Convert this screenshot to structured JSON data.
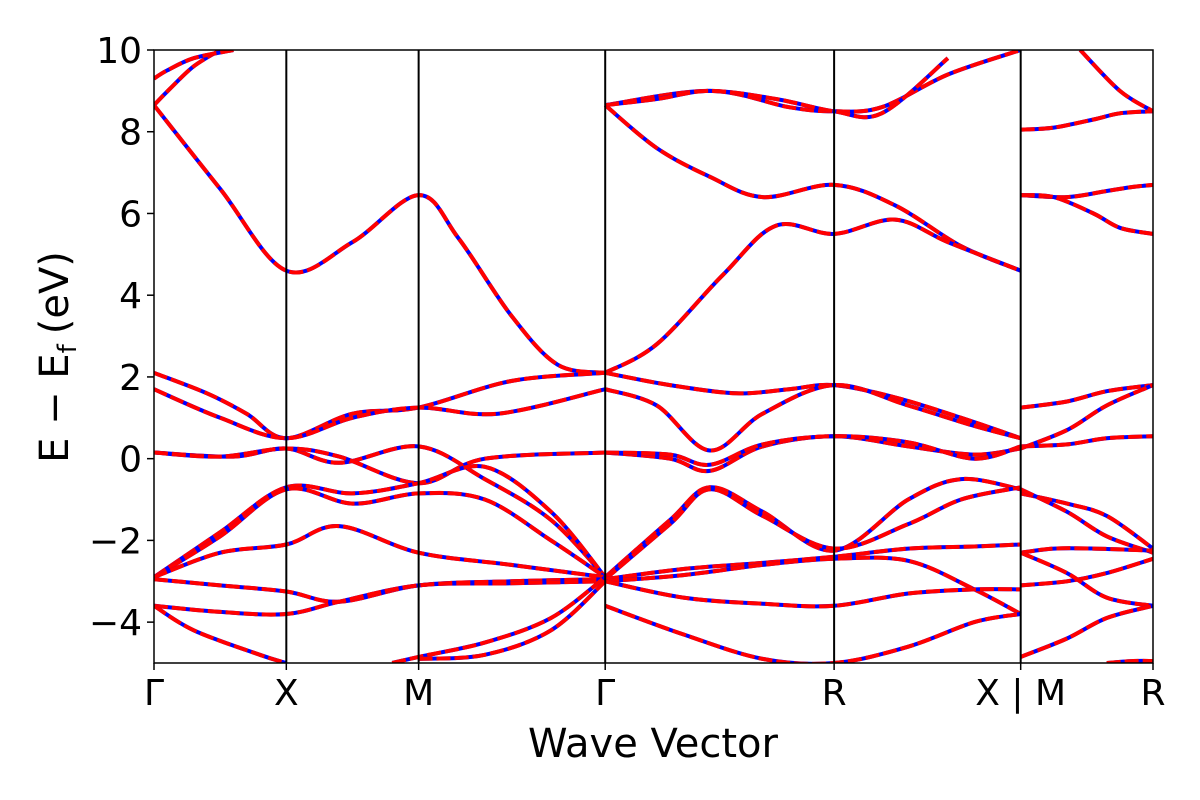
{
  "chart_data": {
    "type": "line",
    "title": "",
    "xlabel": "Wave Vector",
    "ylabel": "E − E",
    "ylabel_sub": "f",
    "ylabel_unit": "(eV)",
    "ylim": [
      -5,
      10
    ],
    "yticks": [
      -4,
      -2,
      0,
      2,
      4,
      6,
      8,
      10
    ],
    "grid": false,
    "xlim": [
      0,
      7.55
    ],
    "kpoints": [
      {
        "label": "Γ",
        "x": 0.0
      },
      {
        "label": "X",
        "x": 1.0
      },
      {
        "label": "M",
        "x": 2.0
      },
      {
        "label": "Γ",
        "x": 3.41
      },
      {
        "label": "R",
        "x": 5.14
      },
      {
        "label": "X | M",
        "x": 6.55
      },
      {
        "label": "R",
        "x": 7.55
      }
    ],
    "series_styles": [
      {
        "color": "#0000ff",
        "dash": "solid"
      },
      {
        "color": "#ff0000",
        "dash": "dashed"
      }
    ],
    "bands": [
      {
        "x": [
          0,
          0.12,
          0.3,
          0.5
        ],
        "y": [
          8.65,
          9.05,
          9.6,
          10.0
        ]
      },
      {
        "x": [
          0,
          0.1,
          0.3,
          0.6
        ],
        "y": [
          9.3,
          9.5,
          9.8,
          10.0
        ]
      },
      {
        "x": [
          0,
          0.5,
          1.0,
          1.5,
          2.0,
          2.3,
          2.7,
          3.05,
          3.41
        ],
        "y": [
          8.65,
          6.6,
          4.6,
          5.3,
          6.45,
          5.4,
          3.5,
          2.3,
          2.1
        ]
      },
      {
        "x": [
          0,
          0.4,
          0.7,
          1.0,
          1.5,
          2.0,
          2.7,
          3.41
        ],
        "y": [
          2.1,
          1.6,
          1.1,
          0.5,
          1.1,
          1.25,
          1.9,
          2.1
        ]
      },
      {
        "x": [
          0,
          0.5,
          1.0,
          1.5,
          2.0,
          2.6,
          3.41
        ],
        "y": [
          1.7,
          1.0,
          0.5,
          1.0,
          1.25,
          1.1,
          1.7
        ]
      },
      {
        "x": [
          0,
          0.6,
          1.0,
          1.4,
          2.0,
          2.5,
          3.0,
          3.41
        ],
        "y": [
          0.15,
          0.05,
          0.25,
          -0.1,
          0.3,
          -0.5,
          -1.5,
          -2.9
        ]
      },
      {
        "x": [
          0,
          0.5,
          1.0,
          1.4,
          2.0,
          2.5,
          3.41
        ],
        "y": [
          0.15,
          0.05,
          0.25,
          0.05,
          -0.6,
          0.0,
          0.15
        ]
      },
      {
        "x": [
          0,
          0.5,
          1.0,
          1.5,
          2.0,
          2.5,
          3.0,
          3.41
        ],
        "y": [
          -2.9,
          -1.8,
          -0.7,
          -0.85,
          -0.6,
          -0.2,
          -1.3,
          -2.9
        ]
      },
      {
        "x": [
          0,
          0.5,
          1.0,
          1.5,
          2.0,
          2.5,
          3.0,
          3.41
        ],
        "y": [
          -2.9,
          -1.9,
          -0.75,
          -1.1,
          -0.85,
          -1.0,
          -2.0,
          -2.9
        ]
      },
      {
        "x": [
          0,
          0.5,
          1.0,
          1.4,
          2.0,
          2.7,
          3.41
        ],
        "y": [
          -2.9,
          -2.3,
          -2.1,
          -1.65,
          -2.3,
          -2.6,
          -2.9
        ]
      },
      {
        "x": [
          0,
          0.5,
          1.0,
          1.4,
          2.0,
          2.7,
          3.41
        ],
        "y": [
          -2.95,
          -3.1,
          -3.25,
          -3.5,
          -3.1,
          -3.0,
          -2.95
        ]
      },
      {
        "x": [
          0,
          0.5,
          1.0,
          1.4,
          2.0,
          2.7,
          3.41
        ],
        "y": [
          -3.6,
          -3.75,
          -3.8,
          -3.5,
          -3.1,
          -3.05,
          -3.0
        ]
      },
      {
        "x": [
          0,
          0.3,
          0.8,
          1.0
        ],
        "y": [
          -3.6,
          -4.2,
          -4.8,
          -5.0
        ]
      },
      {
        "x": [
          1.8,
          2.0,
          2.5,
          3.0,
          3.41
        ],
        "y": [
          -5.0,
          -4.85,
          -4.5,
          -3.9,
          -2.9
        ]
      },
      {
        "x": [
          2.0,
          2.5,
          3.0,
          3.41
        ],
        "y": [
          -4.9,
          -4.8,
          -4.2,
          -3.0
        ]
      },
      {
        "x": [
          3.41,
          3.8,
          4.2,
          4.6,
          5.14,
          5.6,
          6.1,
          6.55
        ],
        "y": [
          8.65,
          7.6,
          6.9,
          6.4,
          6.7,
          6.2,
          5.2,
          4.6
        ]
      },
      {
        "x": [
          3.41,
          4.2,
          4.8,
          5.14,
          5.5,
          6.0,
          6.55
        ],
        "y": [
          8.65,
          9.0,
          8.6,
          8.5,
          8.6,
          9.4,
          10.0
        ]
      },
      {
        "x": [
          3.41,
          3.8,
          4.2,
          4.7,
          5.14,
          5.5,
          6.0
        ],
        "y": [
          8.65,
          8.8,
          9.0,
          8.8,
          8.5,
          8.45,
          9.8
        ]
      },
      {
        "x": [
          3.41,
          3.8,
          4.3,
          4.7,
          5.14,
          5.6,
          6.0,
          6.55
        ],
        "y": [
          2.1,
          2.8,
          4.5,
          5.7,
          5.5,
          5.85,
          5.3,
          4.6
        ]
      },
      {
        "x": [
          3.41,
          3.9,
          4.4,
          4.8,
          5.14,
          5.6,
          6.1,
          6.55
        ],
        "y": [
          2.1,
          1.8,
          1.6,
          1.7,
          1.8,
          1.5,
          1.0,
          0.5
        ]
      },
      {
        "x": [
          3.41,
          3.8,
          4.2,
          4.6,
          5.14,
          5.7,
          6.2,
          6.55
        ],
        "y": [
          1.7,
          1.3,
          0.2,
          1.1,
          1.8,
          1.3,
          0.8,
          0.5
        ]
      },
      {
        "x": [
          3.41,
          3.9,
          4.2,
          4.6,
          5.14,
          5.7,
          6.2,
          6.55
        ],
        "y": [
          0.15,
          0.0,
          -0.3,
          0.3,
          0.55,
          0.3,
          0.1,
          0.25
        ]
      },
      {
        "x": [
          3.41,
          3.9,
          4.2,
          4.6,
          5.14,
          5.7,
          6.2,
          6.55
        ],
        "y": [
          0.15,
          0.1,
          -0.15,
          0.35,
          0.55,
          0.4,
          0.0,
          0.3
        ]
      },
      {
        "x": [
          3.41,
          3.9,
          4.2,
          4.6,
          5.14,
          5.7,
          6.1,
          6.55
        ],
        "y": [
          -2.9,
          -1.5,
          -0.7,
          -1.3,
          -2.25,
          -1.0,
          -0.5,
          -0.75
        ]
      },
      {
        "x": [
          3.41,
          3.9,
          4.2,
          4.6,
          5.14,
          5.7,
          6.1,
          6.55
        ],
        "y": [
          -2.95,
          -1.6,
          -0.75,
          -1.4,
          -2.2,
          -1.6,
          -1.0,
          -0.7
        ]
      },
      {
        "x": [
          3.41,
          4.0,
          4.6,
          5.14,
          5.7,
          6.2,
          6.55
        ],
        "y": [
          -2.95,
          -2.7,
          -2.55,
          -2.4,
          -2.2,
          -2.15,
          -2.1
        ]
      },
      {
        "x": [
          3.41,
          4.0,
          4.6,
          5.14,
          5.7,
          6.2,
          6.55
        ],
        "y": [
          -3.0,
          -2.85,
          -2.6,
          -2.45,
          -2.5,
          -3.2,
          -3.8
        ]
      },
      {
        "x": [
          3.41,
          4.0,
          4.6,
          5.14,
          5.7,
          6.2,
          6.55
        ],
        "y": [
          -3.0,
          -3.4,
          -3.55,
          -3.6,
          -3.3,
          -3.2,
          -3.2
        ]
      },
      {
        "x": [
          3.41,
          4.0,
          4.6,
          5.14,
          5.7,
          6.2,
          6.55
        ],
        "y": [
          -3.6,
          -4.3,
          -4.9,
          -5.0,
          -4.6,
          -4.0,
          -3.8
        ]
      },
      {
        "x": [
          6.55,
          6.8,
          7.1,
          7.3,
          7.55
        ],
        "y": [
          8.05,
          8.1,
          8.3,
          8.45,
          8.5
        ]
      },
      {
        "x": [
          6.55,
          6.9,
          7.2,
          7.4,
          7.55
        ],
        "y": [
          6.45,
          6.4,
          6.55,
          6.65,
          6.7
        ]
      },
      {
        "x": [
          6.55,
          6.8,
          7.1,
          7.3,
          7.55
        ],
        "y": [
          6.45,
          6.4,
          6.0,
          5.65,
          5.5
        ]
      },
      {
        "x": [
          6.55,
          6.9,
          7.2,
          7.55
        ],
        "y": [
          1.25,
          1.4,
          1.65,
          1.8
        ]
      },
      {
        "x": [
          6.55,
          6.9,
          7.2,
          7.55
        ],
        "y": [
          0.3,
          0.35,
          0.5,
          0.55
        ]
      },
      {
        "x": [
          6.55,
          6.9,
          7.2,
          7.55
        ],
        "y": [
          0.25,
          0.7,
          1.3,
          1.8
        ]
      },
      {
        "x": [
          6.55,
          6.9,
          7.2,
          7.55
        ],
        "y": [
          -0.85,
          -1.1,
          -1.4,
          -2.2
        ]
      },
      {
        "x": [
          6.55,
          6.9,
          7.2,
          7.55
        ],
        "y": [
          -0.75,
          -1.3,
          -1.9,
          -2.3
        ]
      },
      {
        "x": [
          6.55,
          6.8,
          7.1,
          7.55
        ],
        "y": [
          -2.3,
          -2.2,
          -2.2,
          -2.25
        ]
      },
      {
        "x": [
          6.55,
          6.9,
          7.2,
          7.55
        ],
        "y": [
          -3.1,
          -3.0,
          -2.8,
          -2.45
        ]
      },
      {
        "x": [
          6.55,
          6.9,
          7.2,
          7.55
        ],
        "y": [
          -2.3,
          -2.8,
          -3.4,
          -3.6
        ]
      },
      {
        "x": [
          6.55,
          6.9,
          7.2,
          7.55
        ],
        "y": [
          -4.85,
          -4.4,
          -3.9,
          -3.6
        ]
      },
      {
        "x": [
          7.2,
          7.4,
          7.55
        ],
        "y": [
          -5.0,
          -4.95,
          -4.95
        ]
      },
      {
        "x": [
          7.0,
          7.3,
          7.55
        ],
        "y": [
          10.0,
          9.0,
          8.5
        ]
      }
    ]
  }
}
